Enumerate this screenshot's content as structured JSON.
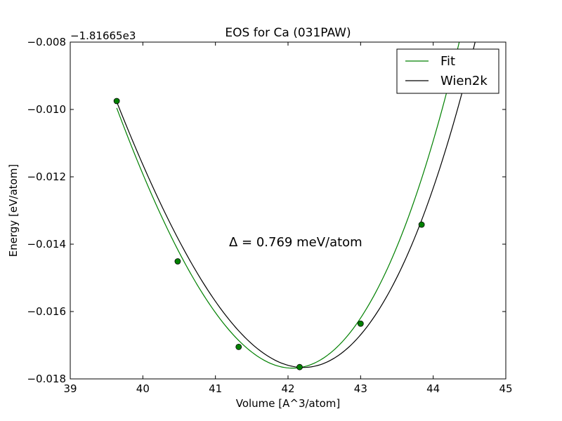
{
  "chart_data": {
    "type": "line",
    "title": "EOS for Ca (031PAW)",
    "xlabel": "Volume [A^3/atom]",
    "ylabel": "Energy [eV/atom]",
    "offset_label": "−1.81665e3",
    "xlim": [
      39,
      45
    ],
    "ylim": [
      -0.018,
      -0.008
    ],
    "x_ticks": [
      39,
      40,
      41,
      42,
      43,
      44,
      45
    ],
    "x_tick_labels": [
      "39",
      "40",
      "41",
      "42",
      "43",
      "44",
      "45"
    ],
    "y_ticks": [
      -0.018,
      -0.016,
      -0.014,
      -0.012,
      -0.01,
      -0.008
    ],
    "y_tick_labels": [
      "−0.018",
      "−0.016",
      "−0.014",
      "−0.012",
      "−0.010",
      "−0.008"
    ],
    "grid": false,
    "legend": {
      "placement": "top-right",
      "entries": [
        "Fit",
        "Wien2k"
      ]
    },
    "annotation": "Δ = 0.769 meV/atom",
    "series": [
      {
        "name": "Fit",
        "color": "#008000",
        "style": "line+markers",
        "curve": {
          "v0": 42.06,
          "e0": -0.01768,
          "a": 0.001582,
          "b": 0.0001087,
          "x_range": [
            39.64,
            44.7
          ]
        },
        "points": [
          {
            "x": 39.64,
            "y": -0.00975
          },
          {
            "x": 40.48,
            "y": -0.01451
          },
          {
            "x": 41.32,
            "y": -0.01705
          },
          {
            "x": 42.16,
            "y": -0.01765
          },
          {
            "x": 43.0,
            "y": -0.01636
          },
          {
            "x": 43.84,
            "y": -0.01342
          }
        ]
      },
      {
        "name": "Wien2k",
        "color": "#000000",
        "style": "line",
        "curve": {
          "v0": 42.21,
          "e0": -0.01766,
          "a": 0.00147,
          "b": 0.0001073,
          "x_range": [
            39.64,
            44.68
          ]
        }
      }
    ]
  }
}
